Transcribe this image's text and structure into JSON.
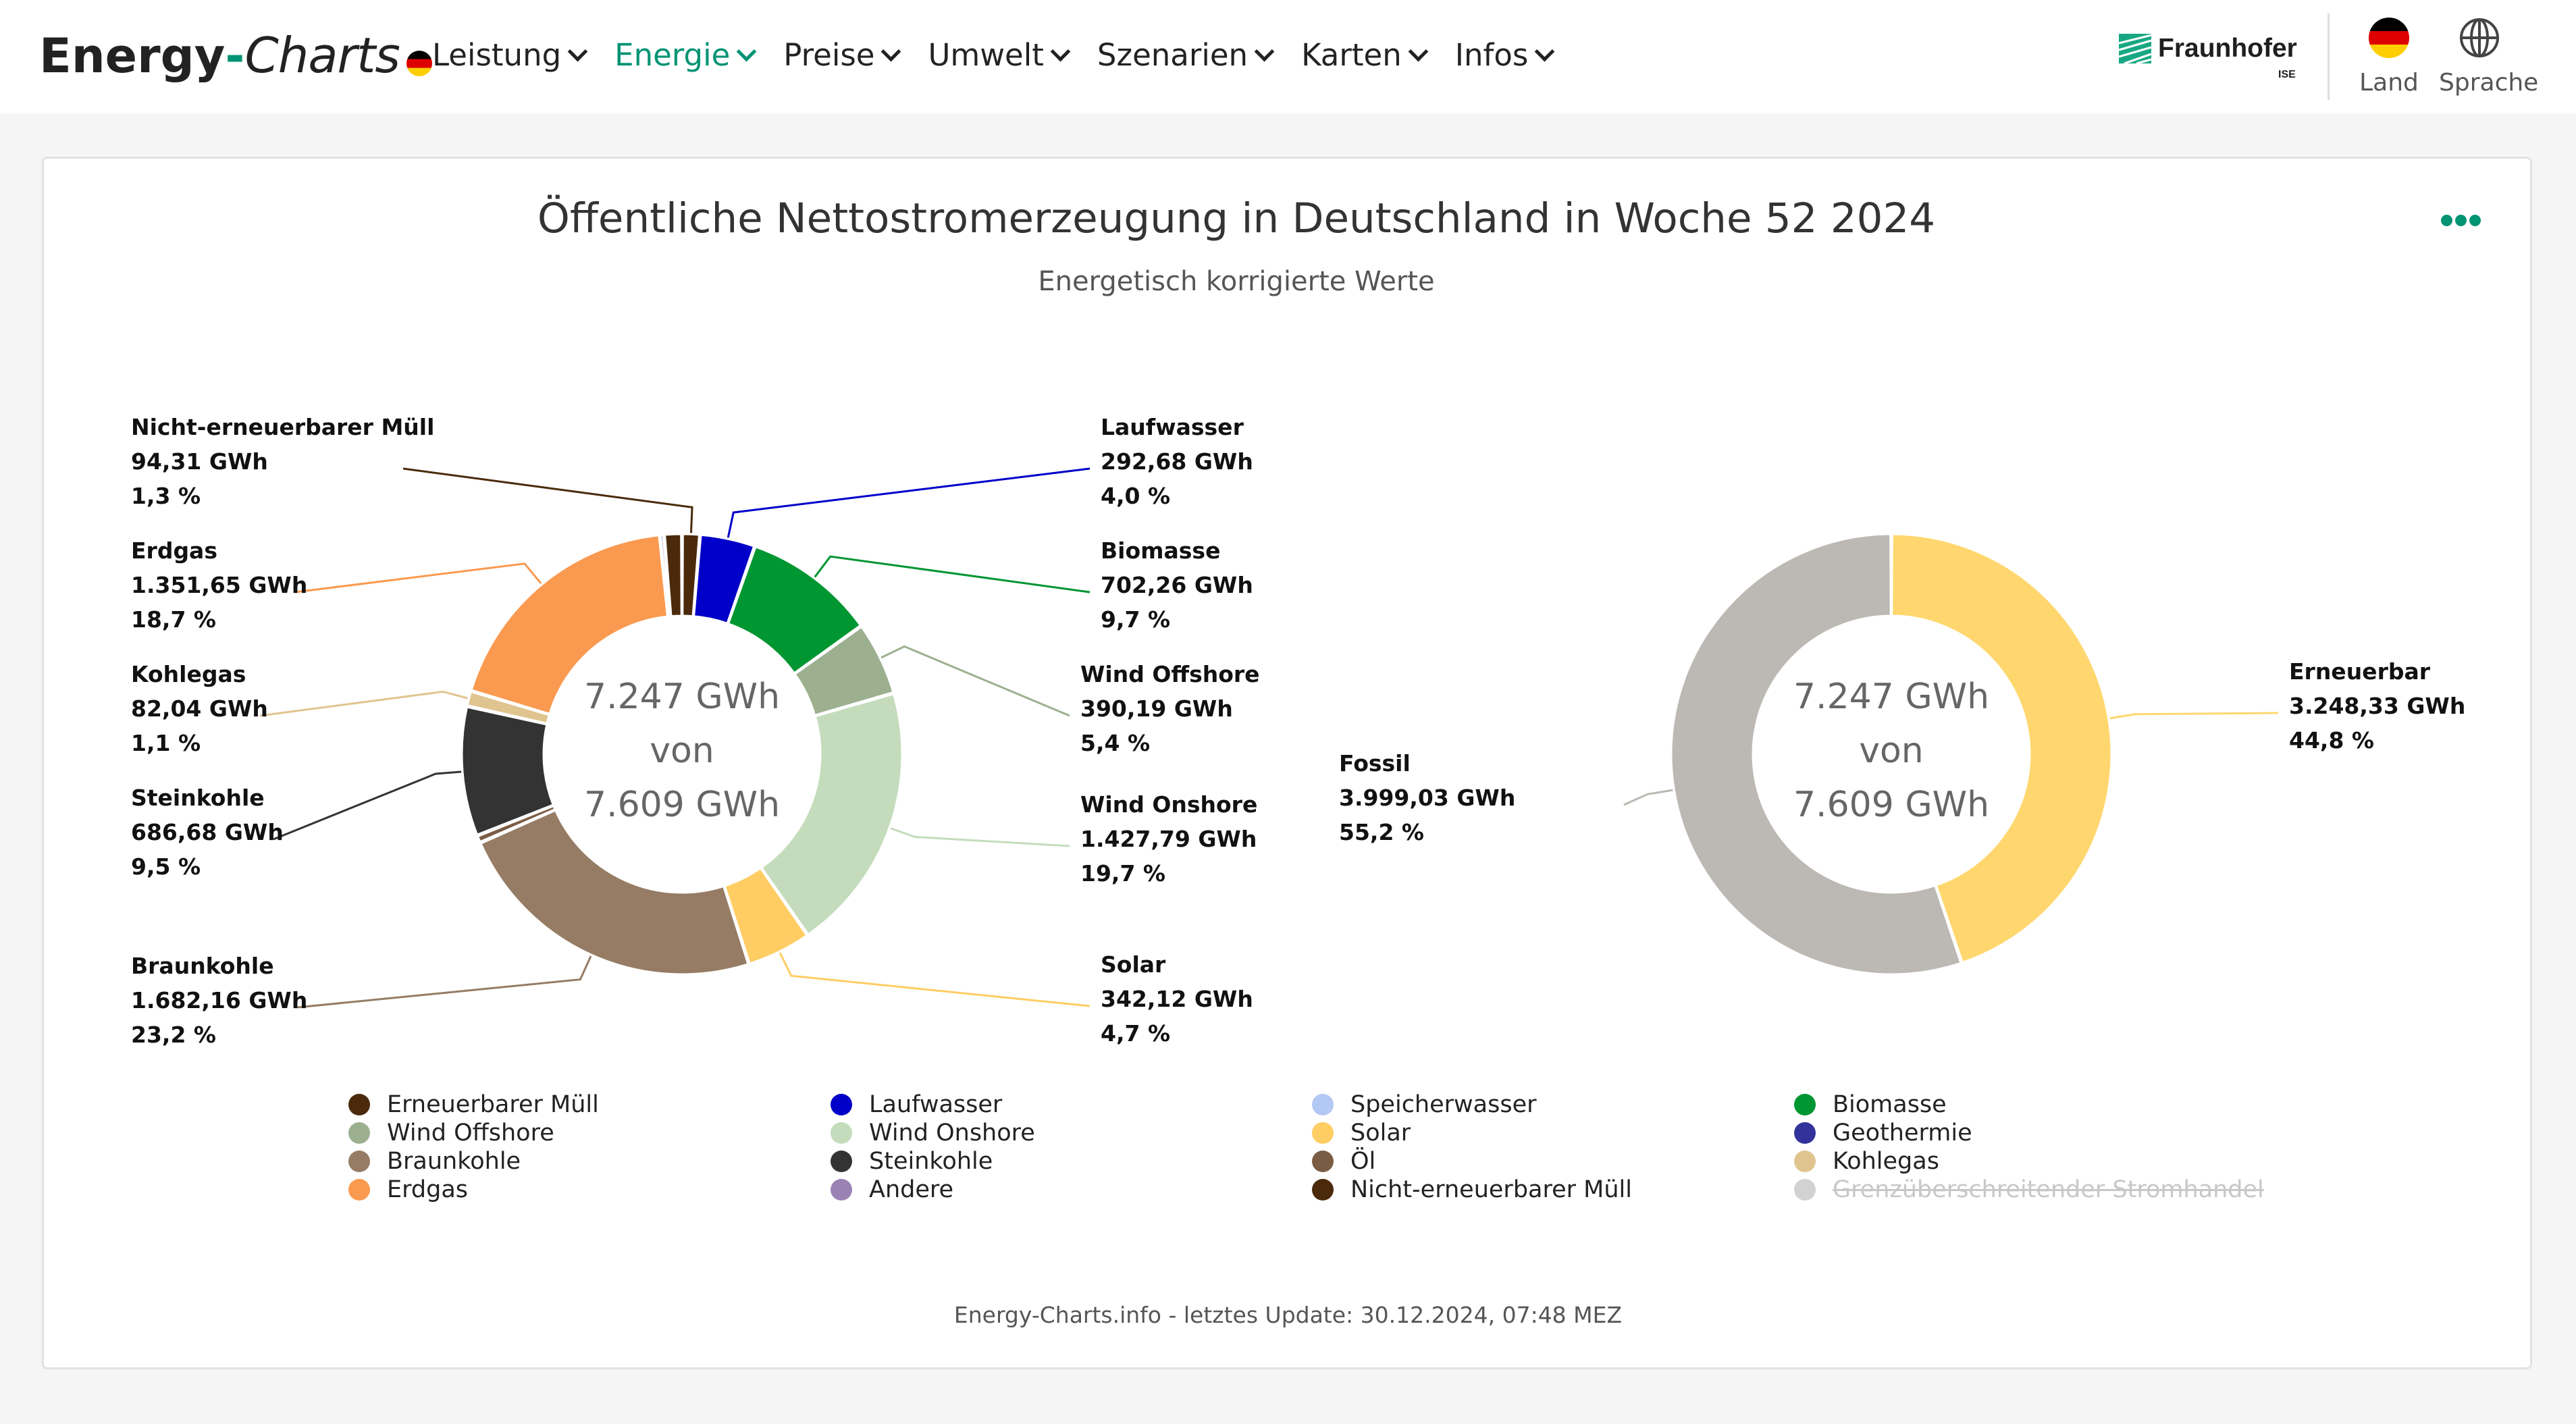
{
  "header": {
    "logo_energy": "Energy",
    "logo_dash": "-",
    "logo_charts": "Charts",
    "nav": [
      {
        "label": "Leistung",
        "active": false
      },
      {
        "label": "Energie",
        "active": true
      },
      {
        "label": "Preise",
        "active": false
      },
      {
        "label": "Umwelt",
        "active": false
      },
      {
        "label": "Szenarien",
        "active": false
      },
      {
        "label": "Karten",
        "active": false
      },
      {
        "label": "Infos",
        "active": false
      }
    ],
    "partner": "Fraunhofer",
    "partner_sub": "ISE",
    "country_label": "Land",
    "language_label": "Sprache"
  },
  "chart_title": "Öffentliche Nettostromerzeugung in Deutschland in Woche 52 2024",
  "chart_subtitle": "Energetisch korrigierte Werte",
  "chart_data": [
    {
      "type": "pie",
      "donut": true,
      "center_text": [
        "7.247 GWh",
        "von",
        "7.609 GWh"
      ],
      "slices": [
        {
          "name": "Nicht-erneuerbarer Müll",
          "value_label": "94,31 GWh",
          "percent_label": "1,3 %",
          "value": 94.31,
          "color": "#4a2a0a",
          "labeled": true
        },
        {
          "name": "Laufwasser",
          "value_label": "292,68 GWh",
          "percent_label": "4,0 %",
          "value": 292.68,
          "color": "#0000c8",
          "labeled": true
        },
        {
          "name": "Biomasse",
          "value_label": "702,26 GWh",
          "percent_label": "9,7 %",
          "value": 702.26,
          "color": "#009632",
          "labeled": true
        },
        {
          "name": "Wind Offshore",
          "value_label": "390,19 GWh",
          "percent_label": "5,4 %",
          "value": 390.19,
          "color": "#9cb090",
          "labeled": true
        },
        {
          "name": "Wind Onshore",
          "value_label": "1.427,79 GWh",
          "percent_label": "19,7 %",
          "value": 1427.79,
          "color": "#c4dcbc",
          "labeled": true
        },
        {
          "name": "Solar",
          "value_label": "342,12 GWh",
          "percent_label": "4,7 %",
          "value": 342.12,
          "color": "#ffcd64",
          "labeled": true
        },
        {
          "name": "Braunkohle",
          "value_label": "1.682,16 GWh",
          "percent_label": "23,2 %",
          "value": 1682.16,
          "color": "#967c64",
          "labeled": true
        },
        {
          "name": "Öl",
          "value": 40,
          "color": "#7a5c44",
          "labeled": false
        },
        {
          "name": "Steinkohle",
          "value_label": "686,68 GWh",
          "percent_label": "9,5 %",
          "value": 686.68,
          "color": "#333333",
          "labeled": true
        },
        {
          "name": "Kohlegas",
          "value_label": "82,04 GWh",
          "percent_label": "1,1 %",
          "value": 82.04,
          "color": "#e0c490",
          "labeled": true
        },
        {
          "name": "Erdgas",
          "value_label": "1.351,65 GWh",
          "percent_label": "18,7 %",
          "value": 1351.65,
          "color": "#fa9a50",
          "labeled": true
        },
        {
          "name": "Andere",
          "value": 22,
          "color": "#9b82b4",
          "labeled": false
        },
        {
          "name": "Erneuerbarer Müll",
          "value": 94,
          "color": "#4a2a0a",
          "labeled": false
        }
      ]
    },
    {
      "type": "pie",
      "donut": true,
      "center_text": [
        "7.247 GWh",
        "von",
        "7.609 GWh"
      ],
      "slices": [
        {
          "name": "Erneuerbar",
          "value_label": "3.248,33 GWh",
          "percent_label": "44,8 %",
          "value": 3248.33,
          "color": "#ffd76e"
        },
        {
          "name": "Fossil",
          "value_label": "3.999,03 GWh",
          "percent_label": "55,2 %",
          "value": 3999.03,
          "color": "#bcb8b3"
        }
      ]
    }
  ],
  "legend": [
    {
      "name": "Erneuerbarer Müll",
      "color": "#4a2a0a",
      "hidden": false
    },
    {
      "name": "Laufwasser",
      "color": "#0000c8",
      "hidden": false
    },
    {
      "name": "Speicherwasser",
      "color": "#b4c8f5",
      "hidden": false
    },
    {
      "name": "Biomasse",
      "color": "#009632",
      "hidden": false
    },
    {
      "name": "Wind Offshore",
      "color": "#9cb090",
      "hidden": false
    },
    {
      "name": "Wind Onshore",
      "color": "#c4dcbc",
      "hidden": false
    },
    {
      "name": "Solar",
      "color": "#ffcd64",
      "hidden": false
    },
    {
      "name": "Geothermie",
      "color": "#32329a",
      "hidden": false
    },
    {
      "name": "Braunkohle",
      "color": "#967c64",
      "hidden": false
    },
    {
      "name": "Steinkohle",
      "color": "#333333",
      "hidden": false
    },
    {
      "name": "Öl",
      "color": "#7a5c44",
      "hidden": false
    },
    {
      "name": "Kohlegas",
      "color": "#e0c490",
      "hidden": false
    },
    {
      "name": "Erdgas",
      "color": "#fa9a50",
      "hidden": false
    },
    {
      "name": "Andere",
      "color": "#9b82b4",
      "hidden": false
    },
    {
      "name": "Nicht-erneuerbarer Müll",
      "color": "#4a2a0a",
      "hidden": false
    },
    {
      "name": "Grenzüberschreitender Stromhandel",
      "color": "#d2d2d2",
      "hidden": true
    }
  ],
  "footer": "Energy-Charts.info - letztes Update: 30.12.2024, 07:48 MEZ"
}
